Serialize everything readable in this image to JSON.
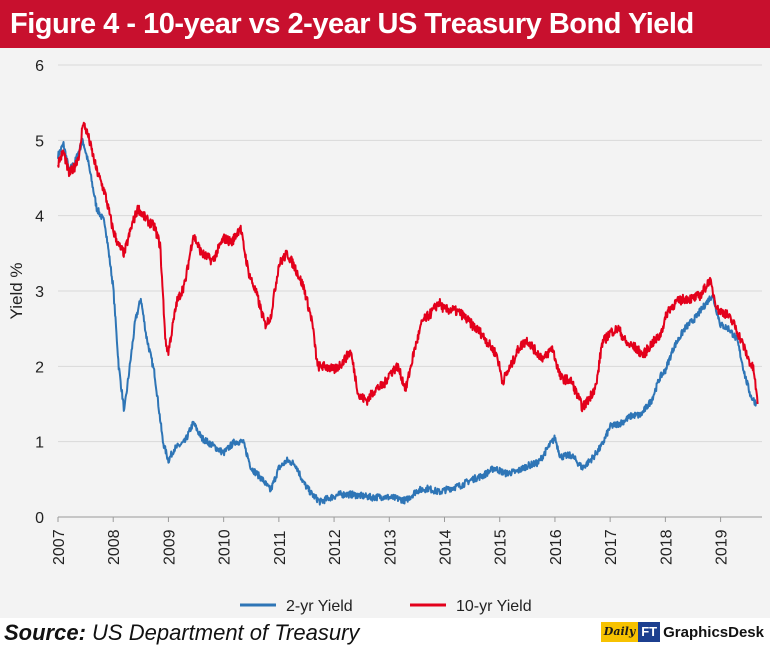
{
  "header": {
    "title": "Figure 4 - 10-year vs 2-year US Treasury Bond Yield"
  },
  "footer": {
    "source_label": "Source:",
    "source_text": "US Department of Treasury",
    "brand_daily": "Daily",
    "brand_ft": "FT",
    "brand_name": "GraphicsDesk"
  },
  "colors": {
    "title_bg": "#c8102e",
    "panel_bg": "#f3f3f3",
    "series_2yr": "#2e75b6",
    "series_10yr": "#e3001b",
    "grid": "#d9d9d9"
  },
  "chart_data": {
    "type": "line",
    "title": "Figure 4 - 10-year vs 2-year US Treasury Bond Yield",
    "xlabel": "",
    "ylabel": "Yield %",
    "xlim": [
      2007,
      2019.75
    ],
    "ylim": [
      0,
      6
    ],
    "xticks": [
      "2007",
      "2008",
      "2009",
      "2010",
      "2011",
      "2012",
      "2013",
      "2014",
      "2015",
      "2016",
      "2017",
      "2018",
      "2019"
    ],
    "yticks": [
      "0",
      "1",
      "2",
      "3",
      "4",
      "5",
      "6"
    ],
    "grid": "horizontal",
    "legend_position": "bottom",
    "series": [
      {
        "name": "2-yr Yield",
        "color": "#2e75b6",
        "points": [
          [
            2007.0,
            4.8
          ],
          [
            2007.1,
            4.95
          ],
          [
            2007.2,
            4.6
          ],
          [
            2007.3,
            4.7
          ],
          [
            2007.45,
            5.0
          ],
          [
            2007.55,
            4.7
          ],
          [
            2007.7,
            4.1
          ],
          [
            2007.85,
            3.9
          ],
          [
            2008.0,
            3.05
          ],
          [
            2008.1,
            2.0
          ],
          [
            2008.2,
            1.4
          ],
          [
            2008.3,
            2.0
          ],
          [
            2008.4,
            2.6
          ],
          [
            2008.5,
            2.9
          ],
          [
            2008.6,
            2.4
          ],
          [
            2008.75,
            1.9
          ],
          [
            2008.9,
            1.0
          ],
          [
            2009.0,
            0.75
          ],
          [
            2009.1,
            0.9
          ],
          [
            2009.3,
            1.0
          ],
          [
            2009.45,
            1.25
          ],
          [
            2009.6,
            1.05
          ],
          [
            2009.8,
            0.95
          ],
          [
            2010.0,
            0.85
          ],
          [
            2010.2,
            1.0
          ],
          [
            2010.35,
            1.0
          ],
          [
            2010.5,
            0.65
          ],
          [
            2010.7,
            0.5
          ],
          [
            2010.85,
            0.35
          ],
          [
            2011.0,
            0.65
          ],
          [
            2011.15,
            0.75
          ],
          [
            2011.3,
            0.7
          ],
          [
            2011.45,
            0.45
          ],
          [
            2011.6,
            0.3
          ],
          [
            2011.75,
            0.2
          ],
          [
            2011.9,
            0.25
          ],
          [
            2012.1,
            0.3
          ],
          [
            2012.3,
            0.3
          ],
          [
            2012.5,
            0.28
          ],
          [
            2012.7,
            0.26
          ],
          [
            2012.9,
            0.27
          ],
          [
            2013.1,
            0.25
          ],
          [
            2013.3,
            0.22
          ],
          [
            2013.5,
            0.35
          ],
          [
            2013.7,
            0.38
          ],
          [
            2013.9,
            0.33
          ],
          [
            2014.1,
            0.38
          ],
          [
            2014.3,
            0.42
          ],
          [
            2014.5,
            0.5
          ],
          [
            2014.7,
            0.55
          ],
          [
            2014.9,
            0.65
          ],
          [
            2015.1,
            0.58
          ],
          [
            2015.3,
            0.6
          ],
          [
            2015.5,
            0.68
          ],
          [
            2015.7,
            0.72
          ],
          [
            2015.9,
            0.95
          ],
          [
            2016.0,
            1.05
          ],
          [
            2016.1,
            0.8
          ],
          [
            2016.3,
            0.82
          ],
          [
            2016.5,
            0.65
          ],
          [
            2016.7,
            0.8
          ],
          [
            2016.85,
            0.95
          ],
          [
            2017.0,
            1.2
          ],
          [
            2017.2,
            1.25
          ],
          [
            2017.4,
            1.35
          ],
          [
            2017.55,
            1.35
          ],
          [
            2017.75,
            1.55
          ],
          [
            2017.9,
            1.85
          ],
          [
            2018.0,
            1.95
          ],
          [
            2018.15,
            2.25
          ],
          [
            2018.35,
            2.5
          ],
          [
            2018.55,
            2.65
          ],
          [
            2018.75,
            2.85
          ],
          [
            2018.85,
            2.95
          ],
          [
            2019.0,
            2.55
          ],
          [
            2019.15,
            2.5
          ],
          [
            2019.3,
            2.35
          ],
          [
            2019.45,
            1.85
          ],
          [
            2019.55,
            1.6
          ],
          [
            2019.65,
            1.5
          ]
        ]
      },
      {
        "name": "10-yr Yield",
        "color": "#e3001b",
        "points": [
          [
            2007.0,
            4.7
          ],
          [
            2007.1,
            4.85
          ],
          [
            2007.2,
            4.55
          ],
          [
            2007.3,
            4.65
          ],
          [
            2007.4,
            4.85
          ],
          [
            2007.45,
            5.25
          ],
          [
            2007.55,
            5.05
          ],
          [
            2007.7,
            4.6
          ],
          [
            2007.85,
            4.3
          ],
          [
            2008.0,
            3.8
          ],
          [
            2008.1,
            3.6
          ],
          [
            2008.2,
            3.5
          ],
          [
            2008.35,
            3.9
          ],
          [
            2008.45,
            4.1
          ],
          [
            2008.6,
            3.95
          ],
          [
            2008.75,
            3.85
          ],
          [
            2008.85,
            3.6
          ],
          [
            2008.95,
            2.3
          ],
          [
            2009.0,
            2.2
          ],
          [
            2009.15,
            2.85
          ],
          [
            2009.3,
            3.1
          ],
          [
            2009.45,
            3.75
          ],
          [
            2009.6,
            3.5
          ],
          [
            2009.8,
            3.4
          ],
          [
            2010.0,
            3.7
          ],
          [
            2010.15,
            3.65
          ],
          [
            2010.3,
            3.85
          ],
          [
            2010.45,
            3.25
          ],
          [
            2010.6,
            2.95
          ],
          [
            2010.75,
            2.55
          ],
          [
            2010.85,
            2.65
          ],
          [
            2011.0,
            3.35
          ],
          [
            2011.15,
            3.5
          ],
          [
            2011.3,
            3.3
          ],
          [
            2011.45,
            3.05
          ],
          [
            2011.6,
            2.6
          ],
          [
            2011.7,
            2.0
          ],
          [
            2011.85,
            2.0
          ],
          [
            2012.0,
            1.95
          ],
          [
            2012.15,
            2.05
          ],
          [
            2012.3,
            2.2
          ],
          [
            2012.45,
            1.6
          ],
          [
            2012.6,
            1.55
          ],
          [
            2012.75,
            1.7
          ],
          [
            2012.9,
            1.75
          ],
          [
            2013.0,
            1.9
          ],
          [
            2013.15,
            2.0
          ],
          [
            2013.3,
            1.7
          ],
          [
            2013.45,
            2.2
          ],
          [
            2013.6,
            2.6
          ],
          [
            2013.75,
            2.7
          ],
          [
            2013.9,
            2.85
          ],
          [
            2014.0,
            2.75
          ],
          [
            2014.15,
            2.75
          ],
          [
            2014.3,
            2.7
          ],
          [
            2014.5,
            2.55
          ],
          [
            2014.65,
            2.45
          ],
          [
            2014.8,
            2.3
          ],
          [
            2014.95,
            2.15
          ],
          [
            2015.05,
            1.8
          ],
          [
            2015.2,
            2.0
          ],
          [
            2015.35,
            2.25
          ],
          [
            2015.5,
            2.35
          ],
          [
            2015.65,
            2.2
          ],
          [
            2015.8,
            2.1
          ],
          [
            2015.95,
            2.25
          ],
          [
            2016.1,
            1.85
          ],
          [
            2016.3,
            1.8
          ],
          [
            2016.5,
            1.45
          ],
          [
            2016.6,
            1.55
          ],
          [
            2016.75,
            1.75
          ],
          [
            2016.85,
            2.3
          ],
          [
            2017.0,
            2.45
          ],
          [
            2017.15,
            2.5
          ],
          [
            2017.3,
            2.3
          ],
          [
            2017.45,
            2.25
          ],
          [
            2017.6,
            2.15
          ],
          [
            2017.75,
            2.3
          ],
          [
            2017.9,
            2.4
          ],
          [
            2018.05,
            2.75
          ],
          [
            2018.2,
            2.85
          ],
          [
            2018.35,
            2.9
          ],
          [
            2018.5,
            2.9
          ],
          [
            2018.65,
            2.95
          ],
          [
            2018.8,
            3.15
          ],
          [
            2018.95,
            2.75
          ],
          [
            2019.1,
            2.7
          ],
          [
            2019.25,
            2.55
          ],
          [
            2019.4,
            2.3
          ],
          [
            2019.5,
            2.1
          ],
          [
            2019.6,
            1.95
          ],
          [
            2019.67,
            1.5
          ]
        ]
      }
    ]
  }
}
